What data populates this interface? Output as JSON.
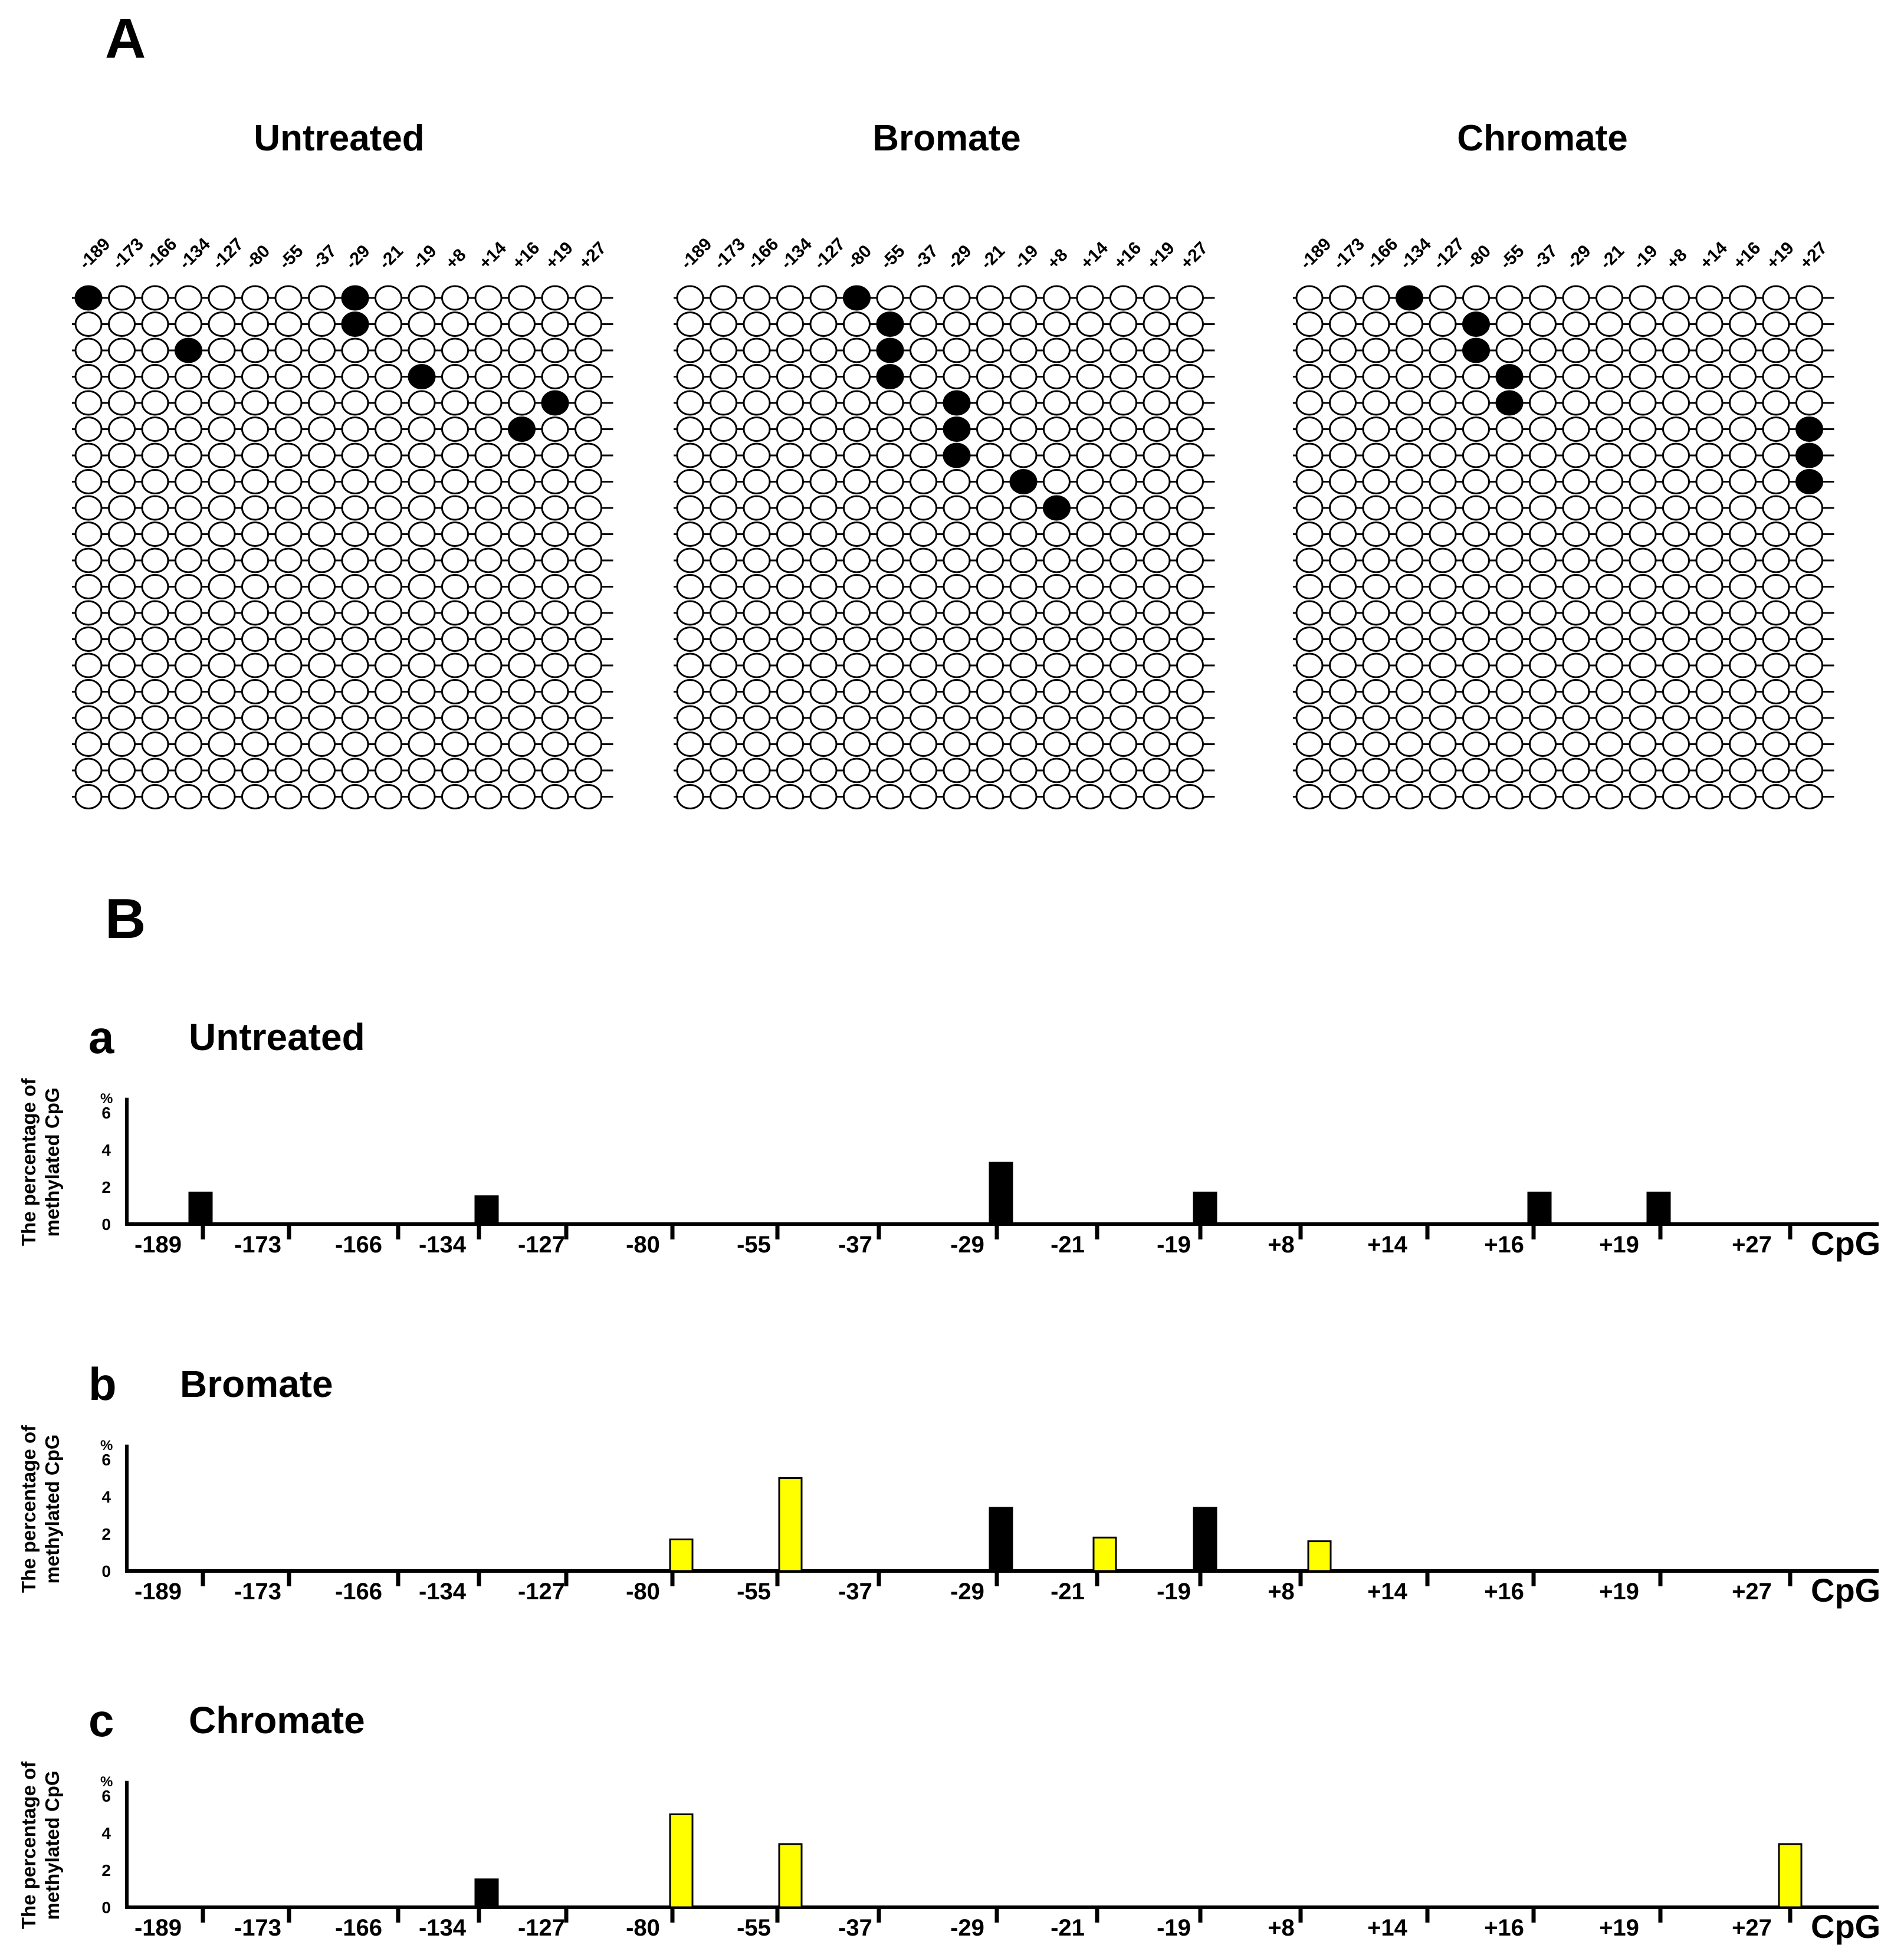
{
  "panelA": {
    "label": "A",
    "positions": [
      "-189",
      "-173",
      "-166",
      "-134",
      "-127",
      "-80",
      "-55",
      "-37",
      "-29",
      "-21",
      "-19",
      "+8",
      "+14",
      "+16",
      "+19",
      "+27"
    ],
    "rows": 20,
    "groups": [
      {
        "title": "Untreated",
        "methylated": [
          [
            0,
            0
          ],
          [
            0,
            8
          ],
          [
            1,
            8
          ],
          [
            2,
            3
          ],
          [
            3,
            10
          ],
          [
            4,
            14
          ],
          [
            5,
            13
          ]
        ]
      },
      {
        "title": "Bromate",
        "methylated": [
          [
            0,
            5
          ],
          [
            1,
            6
          ],
          [
            2,
            6
          ],
          [
            3,
            6
          ],
          [
            4,
            8
          ],
          [
            5,
            8
          ],
          [
            6,
            8
          ],
          [
            7,
            10
          ],
          [
            8,
            11
          ]
        ]
      },
      {
        "title": "Chromate",
        "methylated": [
          [
            0,
            3
          ],
          [
            1,
            5
          ],
          [
            2,
            5
          ],
          [
            3,
            6
          ],
          [
            4,
            6
          ],
          [
            5,
            15
          ],
          [
            6,
            15
          ],
          [
            7,
            15
          ]
        ]
      }
    ]
  },
  "panelB": {
    "label": "B",
    "ylabel_line1": "The percentage of",
    "ylabel_line2": "methylated CpG",
    "unit": "%",
    "xlabel": "CpG"
  },
  "chart_data": [
    {
      "type": "bar",
      "letter": "a",
      "title": "Untreated",
      "categories": [
        "-189",
        "-173",
        "-166",
        "-134",
        "-127",
        "-80",
        "-55",
        "-37",
        "-29",
        "-21",
        "-19",
        "+8",
        "+14",
        "+16",
        "+19",
        "+27"
      ],
      "highlighted_categories": [],
      "ylim": [
        0,
        6.5
      ],
      "yticks": [
        "6",
        "4",
        "2",
        "0"
      ],
      "ytick_values": [
        6,
        4,
        2,
        0
      ],
      "xlabel": "CpG",
      "ylabel": "The percentage of methylated CpG",
      "bars": [
        {
          "category": "-189",
          "value": 1.7,
          "color": "#000000"
        },
        {
          "category": "-134",
          "value": 1.5,
          "color": "#000000"
        },
        {
          "category": "-29",
          "value": 3.3,
          "color": "#000000"
        },
        {
          "category": "-19",
          "value": 1.7,
          "color": "#000000"
        },
        {
          "category": "+16",
          "value": 1.7,
          "color": "#000000"
        },
        {
          "category": "+19",
          "value": 1.7,
          "color": "#000000"
        }
      ]
    },
    {
      "type": "bar",
      "letter": "b",
      "title": "Bromate",
      "categories": [
        "-189",
        "-173",
        "-166",
        "-134",
        "-127",
        "-80",
        "-55",
        "-37",
        "-29",
        "-21",
        "-19",
        "+8",
        "+14",
        "+16",
        "+19",
        "+27"
      ],
      "highlighted_categories": [
        "-189",
        "-134",
        "+16",
        "+19"
      ],
      "ylim": [
        0,
        6.5
      ],
      "yticks": [
        "6",
        "4",
        "2",
        "0"
      ],
      "ytick_values": [
        6,
        4,
        2,
        0
      ],
      "xlabel": "CpG",
      "ylabel": "The percentage of methylated CpG",
      "bars": [
        {
          "category": "-80",
          "value": 1.7,
          "color": "#ffff00"
        },
        {
          "category": "-55",
          "value": 5.0,
          "color": "#ffff00"
        },
        {
          "category": "-29",
          "value": 3.4,
          "color": "#000000"
        },
        {
          "category": "-21",
          "value": 1.8,
          "color": "#ffff00"
        },
        {
          "category": "-19",
          "value": 3.4,
          "color": "#000000"
        },
        {
          "category": "+8",
          "value": 1.6,
          "color": "#ffff00"
        }
      ]
    },
    {
      "type": "bar",
      "letter": "c",
      "title": "Chromate",
      "categories": [
        "-189",
        "-173",
        "-166",
        "-134",
        "-127",
        "-80",
        "-55",
        "-37",
        "-29",
        "-21",
        "-19",
        "+8",
        "+14",
        "+16",
        "+19",
        "+27"
      ],
      "highlighted_categories": [
        "-189",
        "-29",
        "-19",
        "+16",
        "+19"
      ],
      "ylim": [
        0,
        6.5
      ],
      "yticks": [
        "6",
        "4",
        "2",
        "0"
      ],
      "ytick_values": [
        6,
        4,
        2,
        0
      ],
      "xlabel": "CpG",
      "ylabel": "The percentage of methylated CpG",
      "bars": [
        {
          "category": "-134",
          "value": 1.5,
          "color": "#000000"
        },
        {
          "category": "-80",
          "value": 5.0,
          "color": "#ffff00"
        },
        {
          "category": "-55",
          "value": 3.4,
          "color": "#ffff00"
        },
        {
          "category": "+27",
          "value": 3.4,
          "color": "#ffff00"
        }
      ]
    }
  ]
}
